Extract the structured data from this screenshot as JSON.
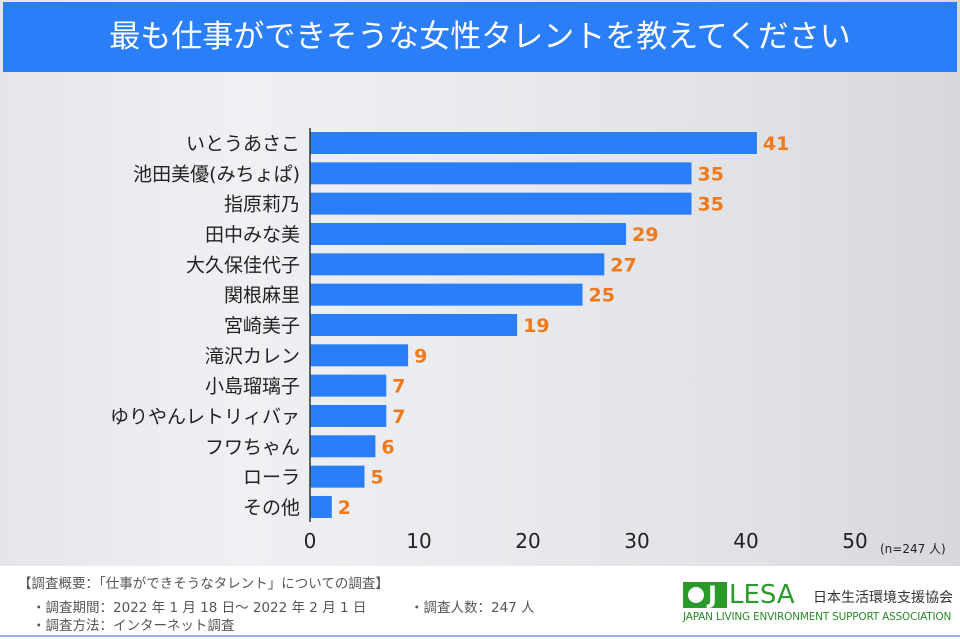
{
  "title": "最も仕事ができそうな女性タレントを教えてください",
  "chart_data": {
    "type": "bar",
    "orientation": "horizontal",
    "categories": [
      "いとうあさこ",
      "池田美優(みちょぱ)",
      "指原莉乃",
      "田中みな美",
      "大久保佳代子",
      "関根麻里",
      "宮崎美子",
      "滝沢カレン",
      "小島瑠璃子",
      "ゆりやんレトリィバァ",
      "フワちゃん",
      "ローラ",
      "その他"
    ],
    "values": [
      41,
      35,
      35,
      29,
      27,
      25,
      19,
      9,
      7,
      7,
      6,
      5,
      2
    ],
    "xlim": [
      0,
      50
    ],
    "xticks": [
      0,
      10,
      20,
      30,
      40,
      50
    ],
    "unit_note": "(n=247 人)",
    "bar_color": "#2a7ef8",
    "label_color": "#f07a1a",
    "grid": false
  },
  "footer": {
    "heading": "【調査概要：「仕事ができそうなタレント」についての調査】",
    "period": "・調査期間：2022 年 1 月 18 日～ 2022 年 2 月 1 日",
    "count": "・調査人数：247 人",
    "method": "・調査方法：インターネット調査"
  },
  "logo": {
    "mark": "JLESA",
    "name_jp": "日本生活環境支援協会",
    "name_en": "JAPAN LIVING ENVIRONMENT SUPPORT ASSOCIATION"
  }
}
